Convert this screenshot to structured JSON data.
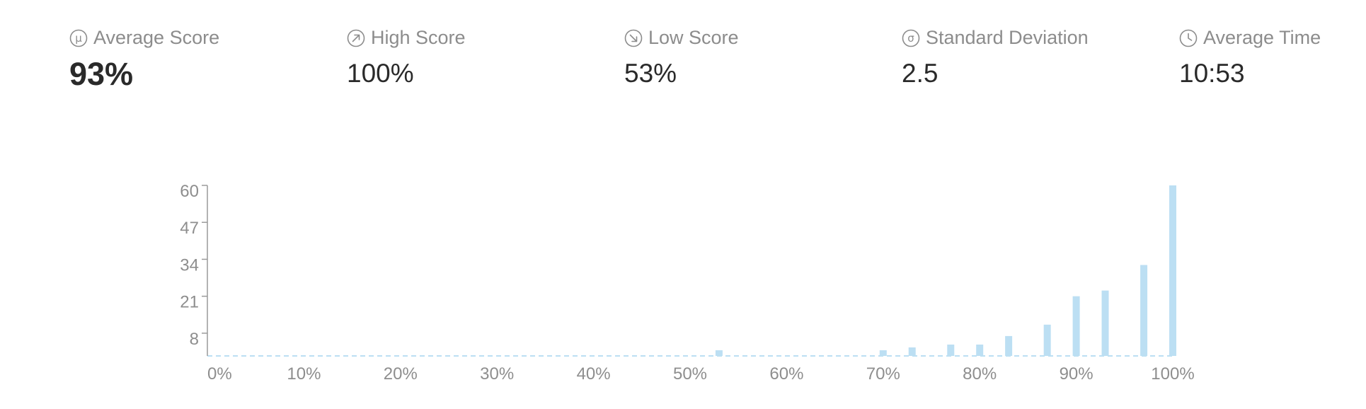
{
  "stats": [
    {
      "label": "Average Score",
      "value": "93%",
      "icon": "mu-icon"
    },
    {
      "label": "High Score",
      "value": "100%",
      "icon": "arrow-up-right-icon"
    },
    {
      "label": "Low Score",
      "value": "53%",
      "icon": "arrow-down-right-icon"
    },
    {
      "label": "Standard Deviation",
      "value": "2.5",
      "icon": "sigma-icon"
    },
    {
      "label": "Average Time",
      "value": "10:53",
      "icon": "clock-icon"
    }
  ],
  "chart_data": {
    "type": "bar",
    "title": "",
    "xlabel": "",
    "ylabel": "",
    "x_ticks": [
      "0%",
      "10%",
      "20%",
      "30%",
      "40%",
      "50%",
      "60%",
      "70%",
      "80%",
      "90%",
      "100%"
    ],
    "y_ticks": [
      8,
      21,
      34,
      47,
      60
    ],
    "xlim": [
      0,
      100
    ],
    "ylim": [
      0,
      60
    ],
    "grid": false,
    "bar_color": "#bcdff3",
    "points": [
      {
        "x": 53,
        "y": 2
      },
      {
        "x": 70,
        "y": 2
      },
      {
        "x": 73,
        "y": 3
      },
      {
        "x": 77,
        "y": 4
      },
      {
        "x": 80,
        "y": 4
      },
      {
        "x": 83,
        "y": 7
      },
      {
        "x": 87,
        "y": 11
      },
      {
        "x": 90,
        "y": 21
      },
      {
        "x": 93,
        "y": 23
      },
      {
        "x": 97,
        "y": 32
      },
      {
        "x": 100,
        "y": 60
      }
    ]
  }
}
